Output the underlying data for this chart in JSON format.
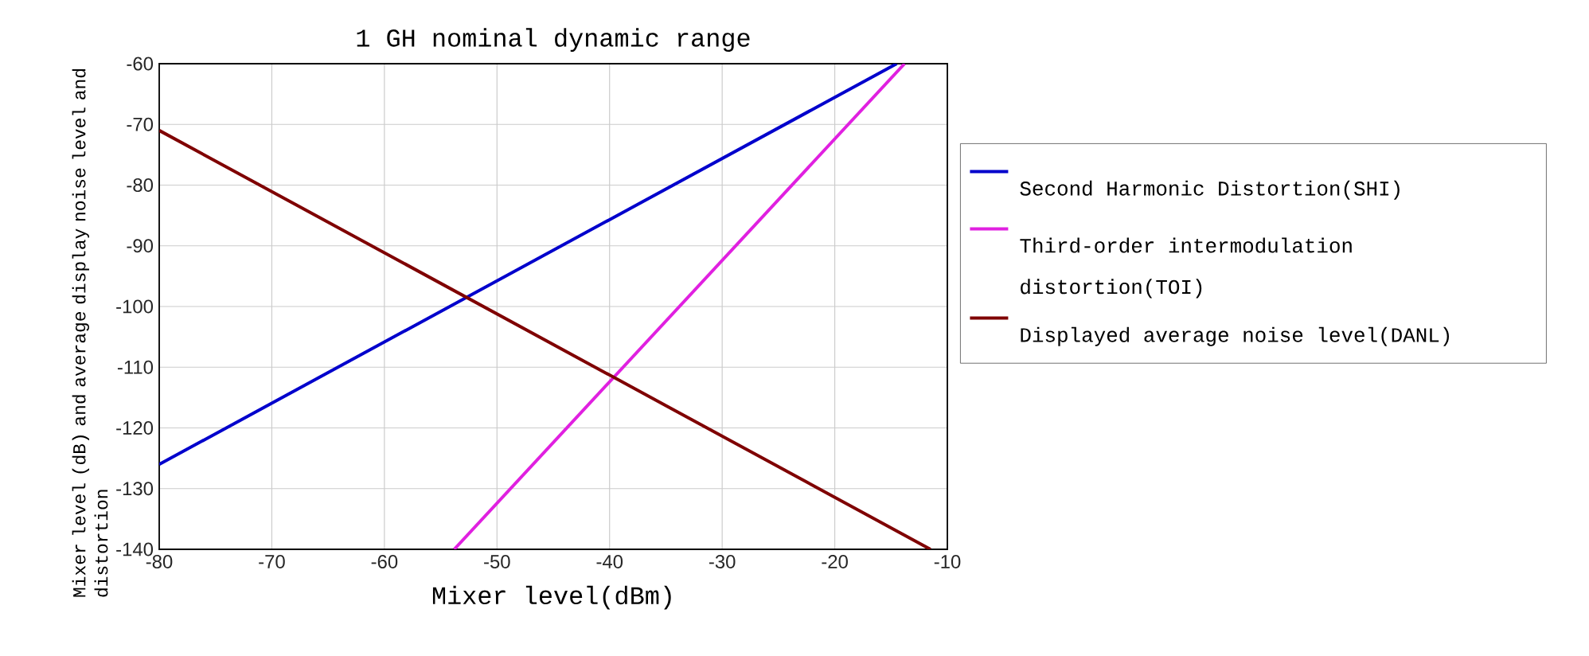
{
  "chart_data": {
    "type": "line",
    "title": "1 GH nominal dynamic range",
    "xlabel": "Mixer level(dBm)",
    "ylabel": "Mixer level (dB) and average display noise level and distortion",
    "xlim": [
      -80,
      -10
    ],
    "ylim": [
      -140,
      -60
    ],
    "xticks": [
      -80,
      -70,
      -60,
      -50,
      -40,
      -30,
      -20,
      -10
    ],
    "yticks": [
      -140,
      -130,
      -120,
      -110,
      -100,
      -90,
      -80,
      -70,
      -60
    ],
    "grid": true,
    "legend": "right",
    "series": [
      {
        "name": "Second Harmonic Distortion(SHI)",
        "color": "#0000cc",
        "x": [
          -80,
          -14.5
        ],
        "values": [
          -126,
          -60
        ]
      },
      {
        "name": "Third-order intermodulation distortion(TOI)",
        "color": "#e020e0",
        "x": [
          -53.8,
          -13.8
        ],
        "values": [
          -140,
          -60
        ]
      },
      {
        "name": "Displayed average noise level(DANL)",
        "color": "#7f0000",
        "x": [
          -80,
          -11.5
        ],
        "values": [
          -71,
          -140
        ]
      }
    ]
  }
}
